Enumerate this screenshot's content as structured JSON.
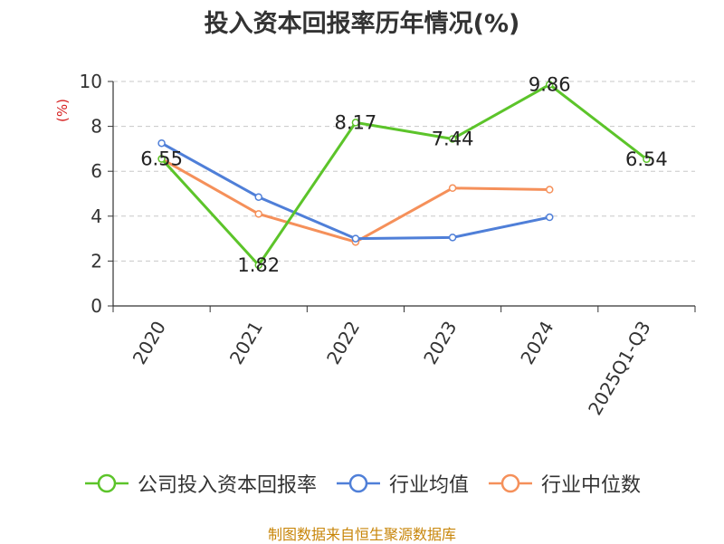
{
  "title": "投入资本回报率历年情况(%)",
  "unit": "(%)",
  "source": "制图数据来自恒生聚源数据库",
  "colors": {
    "company": "#5cc42a",
    "industry_avg": "#4f7fd8",
    "industry_median": "#f5905a",
    "unit_label": "#d62020",
    "source": "#c8860a"
  },
  "chart_data": {
    "type": "line",
    "categories": [
      "2020",
      "2021",
      "2022",
      "2023",
      "2024",
      "2025Q1-Q3"
    ],
    "ylim": [
      0,
      10
    ],
    "yticks": [
      0,
      2,
      4,
      6,
      8,
      10
    ],
    "grid": true,
    "legend_position": "bottom",
    "series": [
      {
        "name": "公司投入资本回报率",
        "color": "#5cc42a",
        "values": [
          6.55,
          1.82,
          8.17,
          7.44,
          9.86,
          6.54
        ],
        "labels": [
          "6.55",
          "1.82",
          "8.17",
          "7.44",
          "9.86",
          "6.54"
        ]
      },
      {
        "name": "行业均值",
        "color": "#4f7fd8",
        "values": [
          7.25,
          4.85,
          3.0,
          3.05,
          3.95,
          null
        ]
      },
      {
        "name": "行业中位数",
        "color": "#f5905a",
        "values": [
          6.55,
          4.1,
          2.85,
          5.25,
          5.18,
          null
        ]
      }
    ]
  }
}
